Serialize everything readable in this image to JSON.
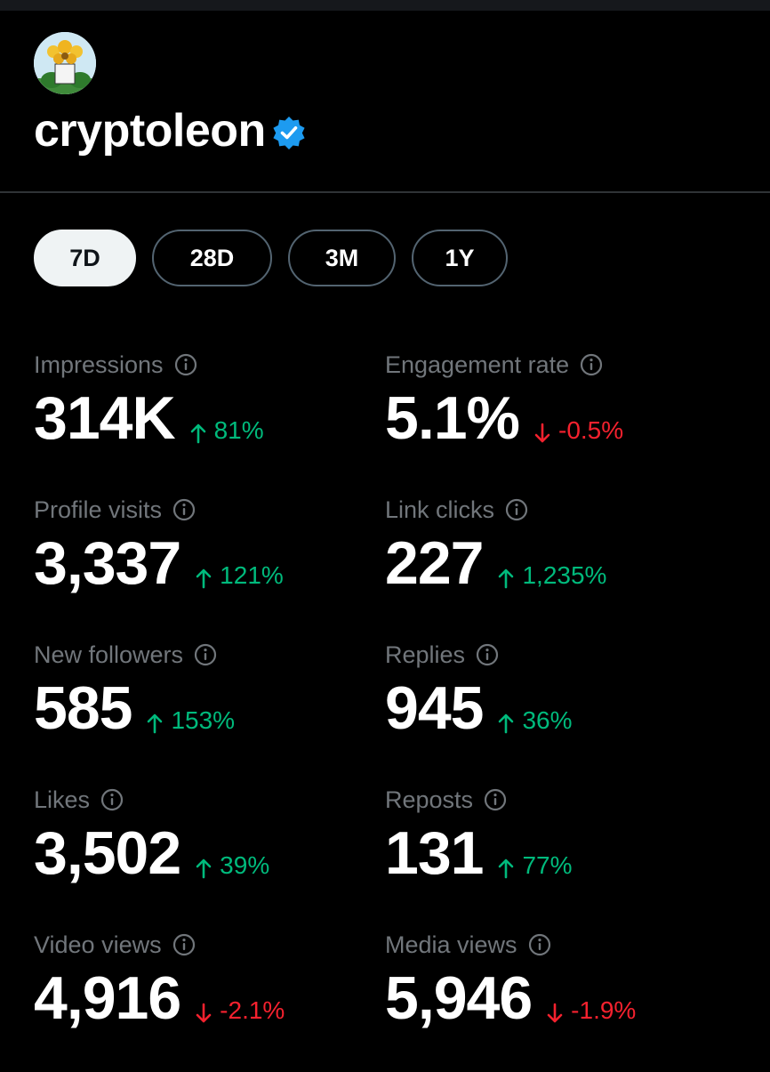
{
  "header": {
    "username": "cryptoleon",
    "verified_color": "#1d9bf0"
  },
  "tabs": [
    {
      "label": "7D",
      "active": true
    },
    {
      "label": "28D",
      "active": false
    },
    {
      "label": "3M",
      "active": false
    },
    {
      "label": "1Y",
      "active": false
    }
  ],
  "metrics": [
    {
      "label": "Impressions",
      "value": "314K",
      "delta": "81%",
      "trend": "up"
    },
    {
      "label": "Engagement rate",
      "value": "5.1%",
      "delta": "-0.5%",
      "trend": "down"
    },
    {
      "label": "Profile visits",
      "value": "3,337",
      "delta": "121%",
      "trend": "up"
    },
    {
      "label": "Link clicks",
      "value": "227",
      "delta": "1,235%",
      "trend": "up"
    },
    {
      "label": "New followers",
      "value": "585",
      "delta": "153%",
      "trend": "up"
    },
    {
      "label": "Replies",
      "value": "945",
      "delta": "36%",
      "trend": "up"
    },
    {
      "label": "Likes",
      "value": "3,502",
      "delta": "39%",
      "trend": "up"
    },
    {
      "label": "Reposts",
      "value": "131",
      "delta": "77%",
      "trend": "up"
    },
    {
      "label": "Video views",
      "value": "4,916",
      "delta": "-2.1%",
      "trend": "down"
    },
    {
      "label": "Media views",
      "value": "5,946",
      "delta": "-1.9%",
      "trend": "down"
    }
  ],
  "colors": {
    "up": "#00ba7c",
    "down": "#f4212e",
    "muted": "#71767b"
  }
}
